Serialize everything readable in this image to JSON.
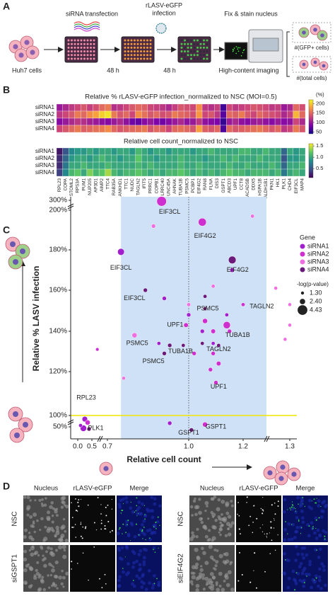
{
  "panel_a": {
    "label": "A",
    "transfection": "siRNA transfection",
    "infection": [
      "rLASV-eGFP",
      "infection"
    ],
    "fix": "Fix & stain nucleus",
    "cells": "Huh7 cells",
    "times": [
      "48 h",
      "48 h"
    ],
    "imaging": "High-content imaging",
    "gfp_count": "#(GFP+ cells)",
    "total_count": "#(total cells)"
  },
  "panel_b": {
    "label": "B"
  },
  "panel_c": {
    "label": "C"
  },
  "panel_d": {
    "label": "D",
    "blocks": [
      {
        "columns": [
          "Nucleus",
          "rLASV-eGFP",
          "Merge"
        ],
        "rows": [
          "NSC",
          "siGSPT1"
        ]
      },
      {
        "columns": [
          "Nucleus",
          "rLASV-eGFP",
          "Merge"
        ],
        "rows": [
          "NSC",
          "siEIF4G2"
        ]
      }
    ]
  },
  "chart_data": [
    {
      "type": "heatmap",
      "title": "Relative % rLASV-eGFP infection_normalized to NSC (MOI=0.5)",
      "colormap": "plasma",
      "clim": [
        40,
        220
      ],
      "colorbar_label": "(%)",
      "colorbar_ticks": [
        50,
        100,
        150,
        200
      ],
      "rows": [
        "siRNA1",
        "siRNA2",
        "siRNA3",
        "siRNA4"
      ],
      "categories": [
        "RPL23",
        "COPA",
        "STOML2",
        "RPS3A",
        "PUM1",
        "NUP205",
        "AP3D1",
        "AIMP2",
        "TTC4",
        "RAB35A",
        "ANKHD1",
        "TTC1",
        "NUDC",
        "TAGLN2",
        "IFIT5",
        "PRRC1",
        "COPB1",
        "LRRC40",
        "UNC45A",
        "AHNAK",
        "TUBA1B",
        "PSMC5",
        "PCBP1",
        "EIF4G2",
        "RAN8",
        "FLNA",
        "DIS3",
        "GSPT1",
        "ABCD3",
        "UPF1",
        "CCT8",
        "ACADSB",
        "DDX5",
        "HSPA1B",
        "ALDH1B1",
        "PKN1",
        "HK1",
        "PLK1",
        "CHD4",
        "EIF3CL",
        "MAP4"
      ],
      "values": [
        [
          100,
          110,
          120,
          130,
          140,
          125,
          135,
          150,
          160,
          115,
          120,
          130,
          140,
          150,
          145,
          130,
          125,
          120,
          110,
          125,
          140,
          135,
          130,
          170,
          120,
          115,
          125,
          60,
          130,
          120,
          125,
          130,
          140,
          135,
          130,
          120,
          125,
          100,
          110,
          150,
          135
        ],
        [
          120,
          130,
          140,
          160,
          150,
          170,
          180,
          200,
          210,
          160,
          140,
          150,
          130,
          170,
          155,
          140,
          150,
          135,
          140,
          160,
          150,
          145,
          135,
          175,
          130,
          140,
          120,
          70,
          150,
          145,
          160,
          140,
          130,
          150,
          140,
          135,
          130,
          110,
          125,
          190,
          150
        ],
        [
          90,
          100,
          110,
          120,
          115,
          105,
          100,
          95,
          90,
          100,
          110,
          95,
          80,
          75,
          90,
          100,
          85,
          80,
          90,
          100,
          110,
          95,
          100,
          120,
          95,
          90,
          85,
          55,
          100,
          110,
          95,
          90,
          100,
          105,
          95,
          90,
          100,
          90,
          95,
          130,
          110
        ],
        [
          130,
          140,
          150,
          160,
          145,
          150,
          155,
          160,
          170,
          150,
          140,
          145,
          150,
          155,
          160,
          140,
          150,
          145,
          130,
          150,
          155,
          150,
          140,
          180,
          145,
          140,
          150,
          65,
          150,
          140,
          145,
          150,
          155,
          160,
          150,
          140,
          150,
          120,
          130,
          160,
          140
        ]
      ]
    },
    {
      "type": "heatmap",
      "title": "Relative cell count_normalized to NSC",
      "colormap": "viridis",
      "clim": [
        0.1,
        1.6
      ],
      "colorbar_ticks": [
        1.5,
        {
          "value": 1,
          "label": "1.0"
        },
        0.5
      ],
      "rows": [
        "siRNA1",
        "siRNA2",
        "siRNA3",
        "siRNA4"
      ],
      "values": [
        [
          0.2,
          0.5,
          0.8,
          0.9,
          0.9,
          1.0,
          0.9,
          1.0,
          1.0,
          0.9,
          1.0,
          1.0,
          0.9,
          1.1,
          1.0,
          0.9,
          1.0,
          1.0,
          0.9,
          1.0,
          1.0,
          1.0,
          0.9,
          1.0,
          1.0,
          1.1,
          1.0,
          1.0,
          1.0,
          1.0,
          1.1,
          1.1,
          1.0,
          1.0,
          1.1,
          1.0,
          1.0,
          0.6,
          1.0,
          0.9,
          1.0
        ],
        [
          0.3,
          0.6,
          0.9,
          1.0,
          1.0,
          0.9,
          1.0,
          1.1,
          1.0,
          1.0,
          0.9,
          1.0,
          1.0,
          1.2,
          1.0,
          1.0,
          0.9,
          1.0,
          1.0,
          1.0,
          1.1,
          1.0,
          1.0,
          1.0,
          0.9,
          1.0,
          1.0,
          1.1,
          1.0,
          1.1,
          1.0,
          1.0,
          1.0,
          1.1,
          1.0,
          1.0,
          1.0,
          0.5,
          0.9,
          0.9,
          1.0
        ],
        [
          0.3,
          0.7,
          1.0,
          1.0,
          1.1,
          1.0,
          1.0,
          1.0,
          1.1,
          1.0,
          1.0,
          1.0,
          1.0,
          1.1,
          1.0,
          1.1,
          1.0,
          1.0,
          1.0,
          1.0,
          1.1,
          1.0,
          1.0,
          1.1,
          1.0,
          1.0,
          1.0,
          1.0,
          1.1,
          1.0,
          1.0,
          1.1,
          1.0,
          1.0,
          1.0,
          1.1,
          1.0,
          0.6,
          1.0,
          1.0,
          1.1
        ],
        [
          0.4,
          0.8,
          1.1,
          1.2,
          1.0,
          1.3,
          1.1,
          1.2,
          1.4,
          1.1,
          1.0,
          1.1,
          1.1,
          1.2,
          1.1,
          1.0,
          1.1,
          1.0,
          1.1,
          1.1,
          1.2,
          1.1,
          1.0,
          1.1,
          1.0,
          1.1,
          1.0,
          1.1,
          1.2,
          1.1,
          1.1,
          1.0,
          1.1,
          1.1,
          1.1,
          1.0,
          1.1,
          0.7,
          1.0,
          1.1,
          1.0
        ]
      ]
    },
    {
      "type": "scatter",
      "xlabel": "Relative cell count",
      "ylabel": "Relative % LASV infection",
      "xlim": [
        -0.05,
        1.33
      ],
      "ylim": [
        0,
        310
      ],
      "xticks": [
        {
          "value": 0,
          "label": "0.0"
        },
        0.5,
        0.7,
        {
          "value": 1,
          "label": "1.0"
        },
        1.2,
        1.3
      ],
      "yticks": [
        {
          "value": 50,
          "label": "50%"
        },
        {
          "value": 100,
          "label": "100%",
          "color": "#e8822a"
        },
        {
          "value": 120,
          "label": "120%"
        },
        {
          "value": 140,
          "label": "140%"
        },
        {
          "value": 160,
          "label": "160%"
        },
        {
          "value": 180,
          "label": "180%"
        },
        {
          "value": 200,
          "label": "200%"
        },
        {
          "value": 300,
          "label": "300%"
        }
      ],
      "highlight_x": [
        0.75,
        1.25
      ],
      "reference_x": 1,
      "reference_y": 100,
      "legend_title": "Gene",
      "size_legend": {
        "title": "-log(p-value)",
        "values": [
          {
            "value": 1.3,
            "label": "1.30"
          },
          {
            "value": 2.4,
            "label": "2.40"
          },
          4.43
        ]
      },
      "series": [
        {
          "name": "siRNA1",
          "color": "#a21fd0",
          "x": [
            0.75,
            0.91,
            1.16,
            1.0,
            1.14,
            1.05,
            1.09,
            0.89,
            0.93,
            0.25,
            0.2,
            0.1
          ],
          "values": [
            179,
            156,
            170,
            148,
            148,
            140,
            134,
            134,
            66,
            84,
            44,
            56
          ],
          "sizes": [
            3.0,
            1.8,
            2.0,
            1.8,
            1.6,
            1.8,
            1.6,
            1.6,
            1.8,
            2.4,
            2.8,
            1.6
          ]
        },
        {
          "name": "siRNA2",
          "color": "#cf2fcf",
          "x": [
            0.9,
            1.05,
            1.2,
            1.14,
            0.99,
            1.06,
            1.09,
            1.15,
            1.02,
            1.09,
            1.11,
            1.08,
            1.1,
            0.57,
            1.06,
            0.35
          ],
          "values": [
            290,
            194,
            153,
            143,
            143,
            145,
            140,
            140,
            129,
            129,
            124,
            121,
            115,
            131,
            60,
            69
          ],
          "sizes": [
            4.4,
            3.6,
            1.6,
            3.2,
            2.0,
            2.2,
            2.0,
            1.8,
            1.8,
            1.8,
            2.0,
            1.8,
            1.8,
            1.4,
            2.2,
            2.2
          ]
        },
        {
          "name": "siRNA3",
          "color": "#f06edf",
          "x": [
            0.87,
            1.22,
            1.09,
            1.27,
            1.3,
            1.3,
            1.29,
            1.0,
            0.8,
            0.76
          ],
          "values": [
            192,
            197,
            162,
            161,
            153,
            143,
            136,
            153,
            138,
            117
          ],
          "sizes": [
            1.8,
            1.6,
            1.6,
            1.5,
            1.5,
            1.5,
            1.5,
            1.6,
            2.2,
            1.5
          ]
        },
        {
          "name": "siRNA4",
          "color": "#6b1a7c",
          "x": [
            0.84,
            1.16,
            1.06,
            1.06,
            0.93,
            0.98,
            1.11,
            1.05,
            0.91,
            1.01,
            0.4
          ],
          "values": [
            160,
            175,
            157,
            151,
            133,
            133,
            133,
            134,
            129,
            37,
            41
          ],
          "sizes": [
            1.8,
            3.4,
            1.6,
            1.6,
            1.8,
            1.6,
            1.6,
            1.6,
            1.8,
            1.8,
            1.8
          ]
        }
      ],
      "annotations": [
        {
          "text": "EIF3CL",
          "x": 0.93,
          "y": 199,
          "color": "#e03030"
        },
        {
          "text": "EIF4G2",
          "x": 1.06,
          "y": 187,
          "color": "#e03030"
        },
        {
          "text": "EIF3CL",
          "x": 0.75,
          "y": 171,
          "color": "#222222"
        },
        {
          "text": "EIF3CL",
          "x": 0.8,
          "y": 156,
          "color": "#222222"
        },
        {
          "text": "EIF4G2",
          "x": 1.18,
          "y": 170,
          "color": "#222222"
        },
        {
          "text": "TAGLN2",
          "x": 1.24,
          "y": 152,
          "color": "#e03030"
        },
        {
          "text": "PSMC5",
          "x": 1.07,
          "y": 151,
          "color": "#222222"
        },
        {
          "text": "UPF1",
          "x": 0.95,
          "y": 143,
          "color": "#e03030"
        },
        {
          "text": "TUBA1B",
          "x": 1.18,
          "y": 138,
          "color": "#e03030"
        },
        {
          "text": "PSMC5",
          "x": 0.81,
          "y": 134,
          "color": "#e03030"
        },
        {
          "text": "TUBA1B",
          "x": 0.97,
          "y": 130,
          "color": "#222222"
        },
        {
          "text": "TAGLN2",
          "x": 1.11,
          "y": 131,
          "color": "#222222"
        },
        {
          "text": "PSMC5",
          "x": 0.87,
          "y": 125,
          "color": "#222222"
        },
        {
          "text": "UPF1",
          "x": 1.11,
          "y": 113,
          "color": "#222222"
        },
        {
          "text": "GSPT1",
          "x": 1.1,
          "y": 50,
          "color": "#e03030"
        },
        {
          "text": "GSPT1",
          "x": 1.0,
          "y": 25,
          "color": "#222222"
        },
        {
          "text": "RPL23",
          "x": 0.3,
          "y": 108,
          "color": "#888888"
        },
        {
          "text": "PLK1",
          "x": 0.55,
          "y": 44,
          "color": "#888888"
        }
      ]
    }
  ]
}
